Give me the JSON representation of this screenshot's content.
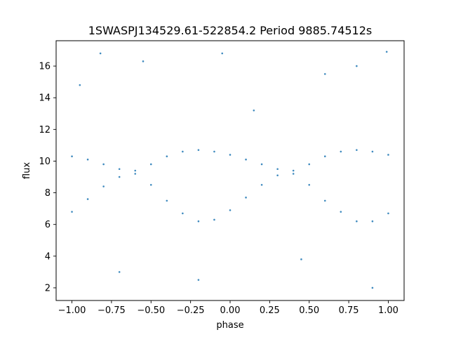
{
  "chart_data": {
    "type": "scatter",
    "title": "1SWASPJ134529.61-522854.2 Period 9885.74512s",
    "xlabel": "phase",
    "ylabel": "flux",
    "xlim": [
      -1.1,
      1.1
    ],
    "ylim": [
      1.2,
      17.6
    ],
    "x_ticks": [
      -1.0,
      -0.75,
      -0.5,
      -0.25,
      0.0,
      0.25,
      0.5,
      0.75,
      1.0
    ],
    "x_tick_labels": [
      "−1.00",
      "−0.75",
      "−0.50",
      "−0.25",
      "0.00",
      "0.25",
      "0.50",
      "0.75",
      "1.00"
    ],
    "y_ticks": [
      2,
      4,
      6,
      8,
      10,
      12,
      14,
      16
    ],
    "y_tick_labels": [
      "2",
      "4",
      "6",
      "8",
      "10",
      "12",
      "14",
      "16"
    ],
    "grid": false,
    "marker_color": "#1f77b4",
    "series": [
      {
        "points": [
          [
            -1.0,
            10.3
          ],
          [
            -0.9,
            10.1
          ],
          [
            -0.8,
            9.8
          ],
          [
            -0.7,
            9.5
          ],
          [
            -0.6,
            9.4
          ],
          [
            -0.5,
            9.8
          ],
          [
            -0.4,
            10.3
          ],
          [
            -0.3,
            10.6
          ],
          [
            -0.2,
            10.7
          ],
          [
            -0.1,
            10.6
          ],
          [
            0.0,
            10.4
          ],
          [
            0.1,
            10.1
          ],
          [
            0.2,
            9.8
          ],
          [
            0.3,
            9.5
          ],
          [
            0.4,
            9.4
          ],
          [
            0.5,
            9.8
          ],
          [
            0.6,
            10.3
          ],
          [
            0.7,
            10.6
          ],
          [
            0.8,
            10.7
          ],
          [
            0.9,
            10.6
          ],
          [
            1.0,
            10.4
          ],
          [
            -1.0,
            6.8
          ],
          [
            -0.9,
            7.6
          ],
          [
            -0.8,
            8.4
          ],
          [
            -0.7,
            9.0
          ],
          [
            -0.6,
            9.2
          ],
          [
            -0.5,
            8.5
          ],
          [
            -0.4,
            7.5
          ],
          [
            -0.3,
            6.7
          ],
          [
            -0.2,
            6.2
          ],
          [
            -0.1,
            6.3
          ],
          [
            0.0,
            6.9
          ],
          [
            0.1,
            7.7
          ],
          [
            0.2,
            8.5
          ],
          [
            0.3,
            9.1
          ],
          [
            0.4,
            9.2
          ],
          [
            0.5,
            8.5
          ],
          [
            0.6,
            7.5
          ],
          [
            0.7,
            6.8
          ],
          [
            0.8,
            6.2
          ],
          [
            0.9,
            6.2
          ],
          [
            1.0,
            6.7
          ],
          [
            -0.95,
            14.8
          ],
          [
            -0.82,
            16.8
          ],
          [
            -0.55,
            16.3
          ],
          [
            -0.2,
            2.5
          ],
          [
            -0.05,
            16.8
          ],
          [
            0.15,
            13.2
          ],
          [
            0.6,
            15.5
          ],
          [
            0.8,
            16.0
          ],
          [
            0.99,
            16.9
          ],
          [
            0.9,
            2.0
          ],
          [
            -0.7,
            3.0
          ],
          [
            0.45,
            3.8
          ]
        ]
      }
    ]
  }
}
